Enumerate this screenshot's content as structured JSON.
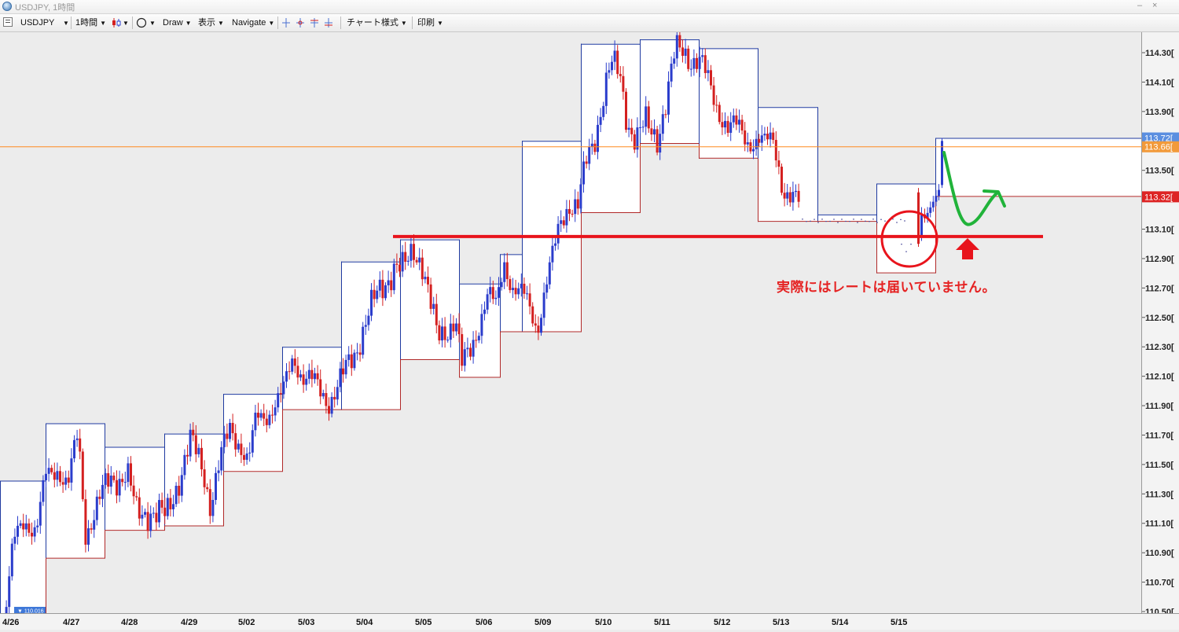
{
  "window": {
    "title": "USDJPY, 1時間",
    "minimize": "–",
    "close": "×"
  },
  "toolbar": {
    "symbol": "USDJPY",
    "timeframe": "1時間",
    "draw": "Draw",
    "view": "表示",
    "navigate": "Navigate",
    "chart_style": "チャート様式",
    "print": "印刷"
  },
  "colors": {
    "bull_candle": "#2b3dcc",
    "bear_candle": "#d42020",
    "box_high": "#1f3aa0",
    "box_low": "#b02828",
    "support_line": "#e8141c",
    "current_price_line": "#ff8a1f",
    "green_arrow": "#21b33a"
  },
  "annotation": {
    "text": "実際にはレートは届いていません。"
  },
  "chart_data": {
    "type": "candlestick",
    "symbol": "USDJPY",
    "timeframe": "1時間",
    "ylim": [
      110.35,
      114.42
    ],
    "y_ticks": [
      114.3,
      114.1,
      113.9,
      113.5,
      113.1,
      112.9,
      112.7,
      112.5,
      112.3,
      112.1,
      111.9,
      111.7,
      111.5,
      111.3,
      111.1,
      110.9,
      110.7,
      110.5
    ],
    "y_tick_labels": [
      "114.30[",
      "114.10[",
      "113.90[",
      "113.50[",
      "113.10[",
      "112.90[",
      "112.70[",
      "112.50[",
      "112.30[",
      "112.10[",
      "111.90[",
      "111.70[",
      "111.50[",
      "111.30[",
      "111.10[",
      "110.90[",
      "110.70[",
      "110.50["
    ],
    "x_labels": [
      "4/26",
      "4/27",
      "4/28",
      "4/29",
      "5/02",
      "5/03",
      "5/04",
      "5/05",
      "5/06",
      "5/09",
      "5/10",
      "5/11",
      "5/12",
      "5/13",
      "5/14",
      "5/15"
    ],
    "price_labels": [
      {
        "value": 113.72,
        "text": "113.72[",
        "color": "#5b8fe0"
      },
      {
        "value": 113.66,
        "text": "113.66[",
        "color": "#f29a3a"
      },
      {
        "value": 113.32,
        "text": "113.32[",
        "color": "#dd2424"
      }
    ],
    "left_label": "110.016",
    "current_price": 113.66,
    "horizontal_line": 113.05,
    "daily_ranges": [
      {
        "start": "4/26",
        "high": 111.39,
        "low": 110.4
      },
      {
        "start": "4/27",
        "high": 111.78,
        "low": 110.86
      },
      {
        "start": "4/28",
        "high": 111.62,
        "low": 111.05
      },
      {
        "start": "4/29",
        "high": 111.71,
        "low": 111.08
      },
      {
        "start": "5/02",
        "high": 111.98,
        "low": 111.45
      },
      {
        "start": "5/03",
        "high": 112.3,
        "low": 111.87
      },
      {
        "start": "5/04",
        "high": 112.88,
        "low": 111.87
      },
      {
        "start": "5/05",
        "high": 113.03,
        "low": 112.21
      },
      {
        "start": "5/06",
        "high": 112.73,
        "low": 112.09
      },
      {
        "start": "5/09",
        "high": 112.93,
        "low": 112.4
      },
      {
        "start": "5/10",
        "high": 113.7,
        "low": 112.4
      },
      {
        "start": "5/11",
        "high": 114.36,
        "low": 113.21
      },
      {
        "start": "5/12",
        "high": 114.39,
        "low": 113.68
      },
      {
        "start": "5/13",
        "high": 114.33,
        "low": 113.58
      },
      {
        "start": "5/14",
        "high": 113.93,
        "low": 113.15
      },
      {
        "start": "5/14b",
        "high": 113.2,
        "low": 113.15
      },
      {
        "start": "5/15",
        "high": 113.41,
        "low": 112.8
      },
      {
        "start": "5/15b",
        "high": 113.72,
        "low": 113.32
      }
    ]
  }
}
